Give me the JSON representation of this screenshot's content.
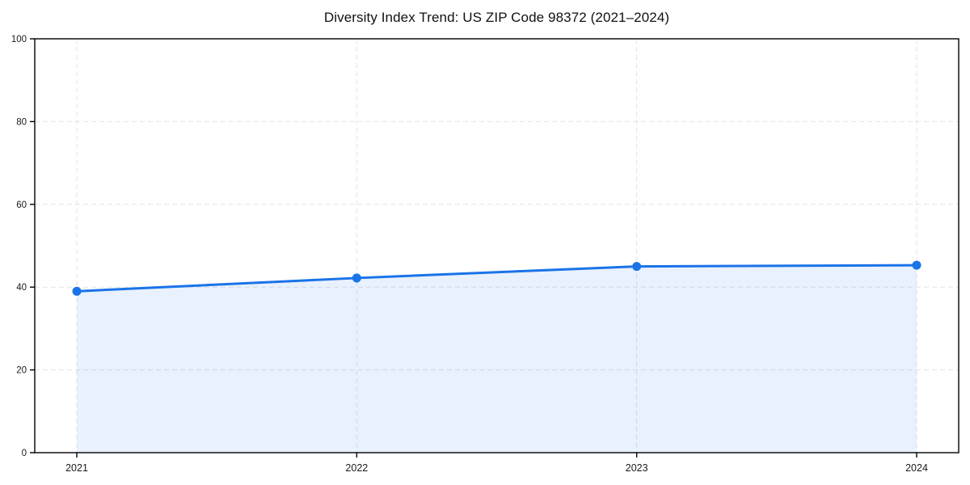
{
  "page": {
    "background": "#ffffff"
  },
  "chart_data": {
    "type": "area",
    "title": "Diversity Index Trend: US ZIP Code 98372 (2021–2024)",
    "categories": [
      "2021",
      "2022",
      "2023",
      "2024"
    ],
    "values": [
      39.0,
      42.2,
      45.0,
      45.3
    ],
    "xlabel": "",
    "ylabel": "",
    "ylim": [
      0,
      100
    ],
    "yticks": [
      0,
      20,
      40,
      60,
      80,
      100
    ],
    "grid": "dashed-both-axes",
    "legend": "none",
    "colors": {
      "line": "#1a73e8",
      "marker": "#1a73e8",
      "fill": "rgba(26,115,232,0.10)",
      "gridline": "#e3e3e3",
      "spine": "#000000",
      "tick_label": "#1a1a1a",
      "title": "#111111"
    }
  }
}
